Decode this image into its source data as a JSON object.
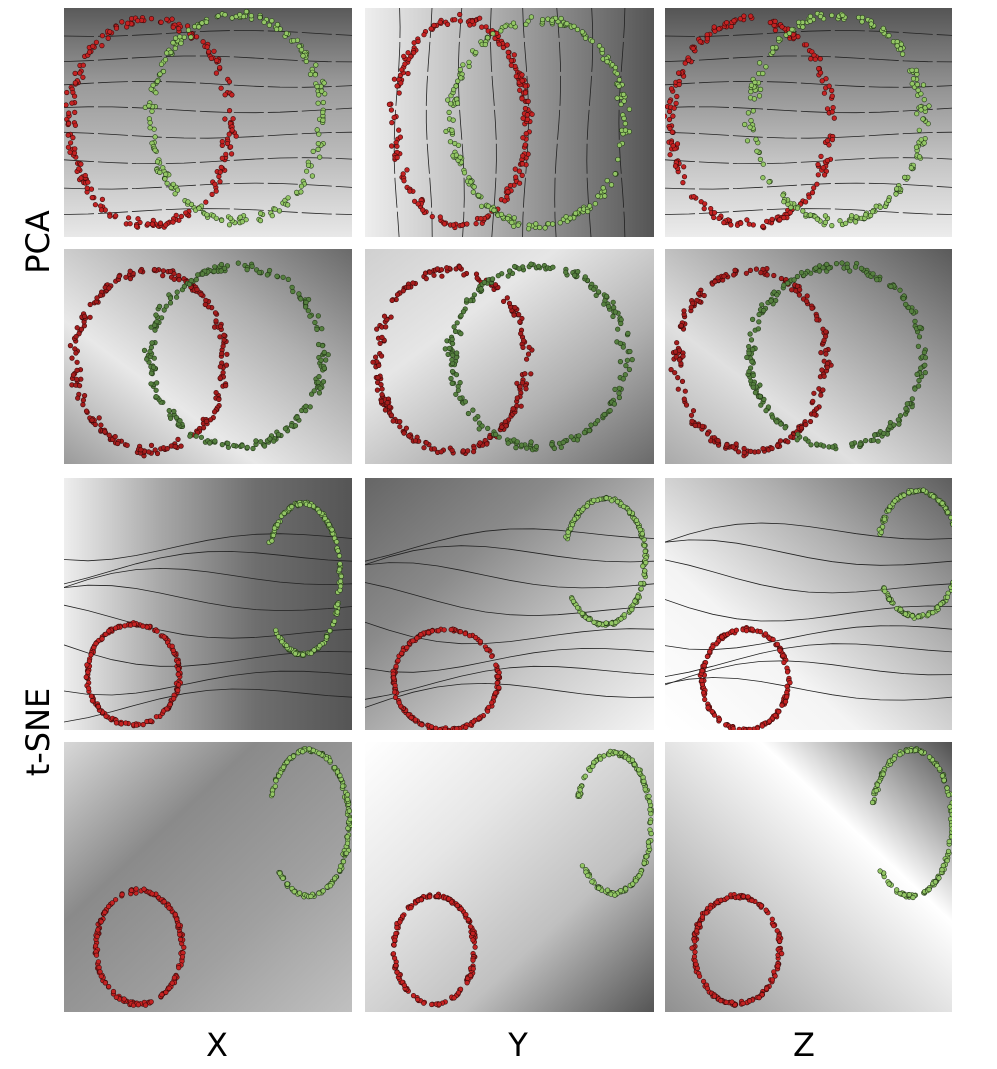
{
  "row_labels": [
    "PCA",
    "t-SNE"
  ],
  "column_labels": [
    "X",
    "Y",
    "Z"
  ]
}
